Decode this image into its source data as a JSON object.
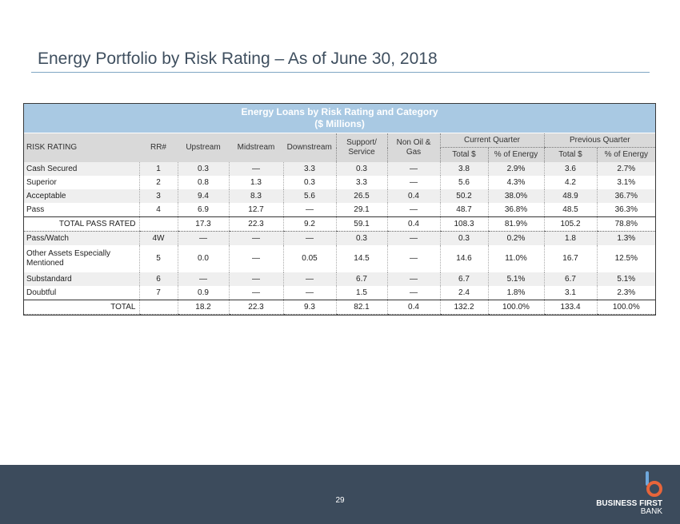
{
  "page": {
    "title": "Energy Portfolio by Risk Rating – As of June 30, 2018",
    "page_number": "29"
  },
  "table": {
    "banner_title": "Energy Loans by Risk Rating and Category",
    "banner_subtitle": "($ Millions)",
    "headers": {
      "risk_rating": "RISK RATING",
      "rr": "RR#",
      "upstream": "Upstream",
      "midstream": "Midstream",
      "downstream": "Downstream",
      "support_l1": "Support/",
      "support_l2": "Service",
      "nonoil_l1": "Non Oil &",
      "nonoil_l2": "Gas",
      "current_quarter": "Current Quarter",
      "previous_quarter": "Previous Quarter",
      "total": "Total $",
      "pct_energy": "% of Energy"
    },
    "rows": [
      {
        "cells": [
          "Cash Secured",
          "1",
          "0.3",
          "—",
          "3.3",
          "0.3",
          "—",
          "3.8",
          "2.9%",
          "3.6",
          "2.7%"
        ]
      },
      {
        "cells": [
          "Superior",
          "2",
          "0.8",
          "1.3",
          "0.3",
          "3.3",
          "—",
          "5.6",
          "4.3%",
          "4.2",
          "3.1%"
        ]
      },
      {
        "cells": [
          "Acceptable",
          "3",
          "9.4",
          "8.3",
          "5.6",
          "26.5",
          "0.4",
          "50.2",
          "38.0%",
          "48.9",
          "36.7%"
        ]
      },
      {
        "cells": [
          "Pass",
          "4",
          "6.9",
          "12.7",
          "—",
          "29.1",
          "—",
          "48.7",
          "36.8%",
          "48.5",
          "36.3%"
        ]
      },
      {
        "cells": [
          "TOTAL PASS RATED",
          "",
          "17.3",
          "22.3",
          "9.2",
          "59.1",
          "0.4",
          "108.3",
          "81.9%",
          "105.2",
          "78.8%"
        ]
      },
      {
        "cells": [
          "Pass/Watch",
          "4W",
          "—",
          "—",
          "—",
          "0.3",
          "—",
          "0.3",
          "0.2%",
          "1.8",
          "1.3%"
        ]
      },
      {
        "cells": [
          "Other Assets Especially Mentioned",
          "5",
          "0.0",
          "—",
          "0.05",
          "14.5",
          "—",
          "14.6",
          "11.0%",
          "16.7",
          "12.5%"
        ]
      },
      {
        "cells": [
          "Substandard",
          "6",
          "—",
          "—",
          "—",
          "6.7",
          "—",
          "6.7",
          "5.1%",
          "6.7",
          "5.1%"
        ]
      },
      {
        "cells": [
          "Doubtful",
          "7",
          "0.9",
          "—",
          "—",
          "1.5",
          "—",
          "2.4",
          "1.8%",
          "3.1",
          "2.3%"
        ]
      },
      {
        "cells": [
          "TOTAL",
          "",
          "18.2",
          "22.3",
          "9.3",
          "82.1",
          "0.4",
          "132.2",
          "100.0%",
          "133.4",
          "100.0%"
        ]
      }
    ]
  },
  "footer": {
    "logo_text": "BUSINESS FIRST",
    "logo_sub": "BANK",
    "logo_icon": "b-logo-icon",
    "accent": "#e8653a"
  }
}
